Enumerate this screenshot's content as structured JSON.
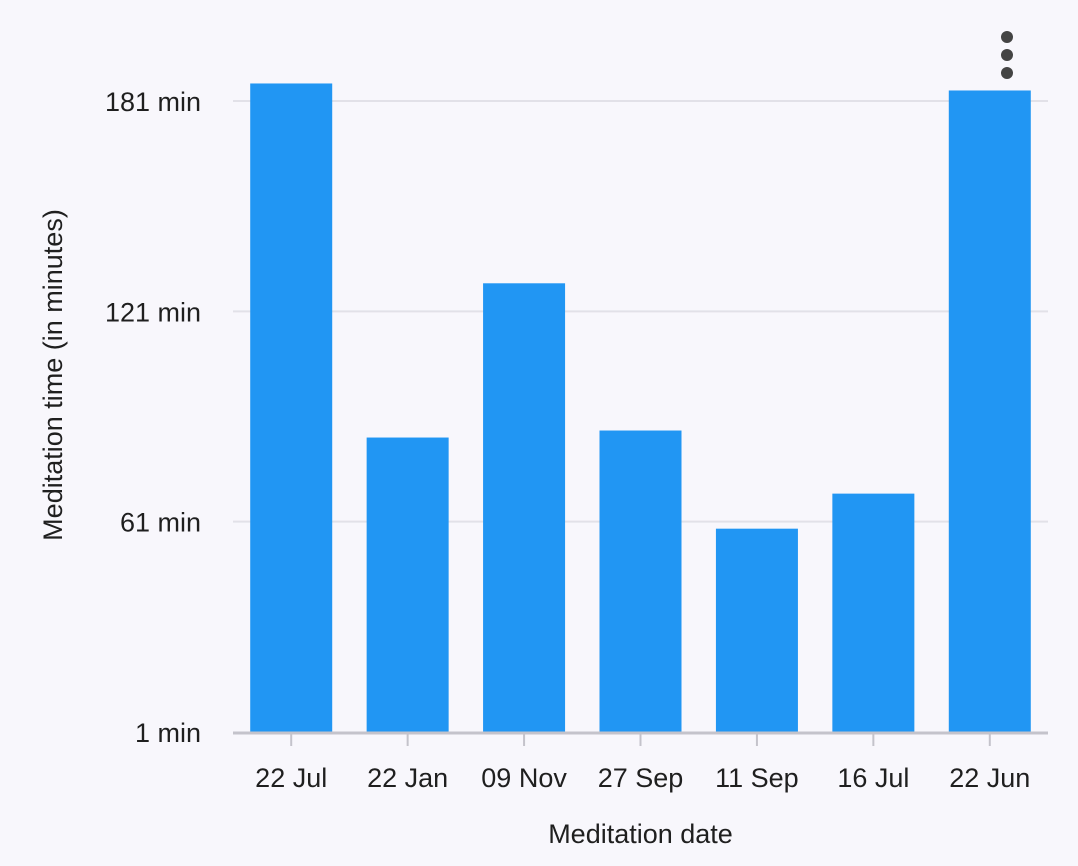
{
  "colors": {
    "background": "#f8f7fc",
    "bar": "#2196f3",
    "gridline": "#e2e1e8",
    "axis_line": "#c4c3cb",
    "text": "#1f1f1f",
    "menu_dots": "#444444"
  },
  "menu": {
    "icon": "more-vert-icon"
  },
  "chart_data": {
    "type": "bar",
    "categories": [
      "22 Jul",
      "22 Jan",
      "09 Nov",
      "27 Sep",
      "11 Sep",
      "16 Jul",
      "22 Jun"
    ],
    "values": [
      186,
      85,
      129,
      87,
      59,
      69,
      184
    ],
    "xlabel": "Meditation date",
    "ylabel": "Meditation time (in minutes)",
    "ylim": [
      1,
      181
    ],
    "yticks": [
      1,
      61,
      121,
      181
    ],
    "ytick_labels": [
      "1 min",
      "61 min",
      "121 min",
      "181 min"
    ],
    "grid": true,
    "legend": "none"
  }
}
